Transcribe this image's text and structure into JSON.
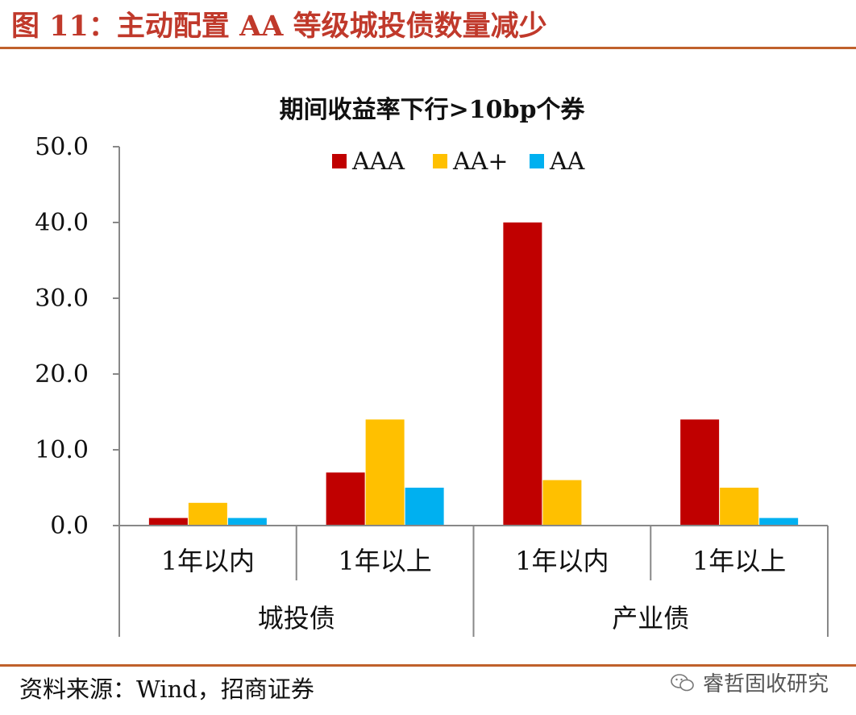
{
  "figure": {
    "title": "图 11：主动配置 AA 等级城投债数量减少",
    "source": "资料来源：Wind，招商证券",
    "watermark": "睿哲固收研究"
  },
  "chart_data": {
    "type": "bar",
    "title": "期间收益率下行>10bp个券",
    "groups": [
      "城投债",
      "产业债"
    ],
    "categories": [
      "1年以内",
      "1年以上",
      "1年以内",
      "1年以上"
    ],
    "category_group": [
      0,
      0,
      1,
      1
    ],
    "series": [
      {
        "name": "AAA",
        "color": "#c00000",
        "values": [
          1,
          7,
          40,
          14
        ]
      },
      {
        "name": "AA+",
        "color": "#ffc000",
        "values": [
          3,
          14,
          6,
          5
        ]
      },
      {
        "name": "AA",
        "color": "#00b0f0",
        "values": [
          1,
          5,
          0,
          1
        ]
      }
    ],
    "ylim": [
      0,
      50
    ],
    "yticks": [
      0,
      10,
      20,
      30,
      40,
      50
    ],
    "ytick_format": "0.0",
    "xlabel": "",
    "ylabel": "",
    "grid": false,
    "legend_position": "top-center"
  }
}
